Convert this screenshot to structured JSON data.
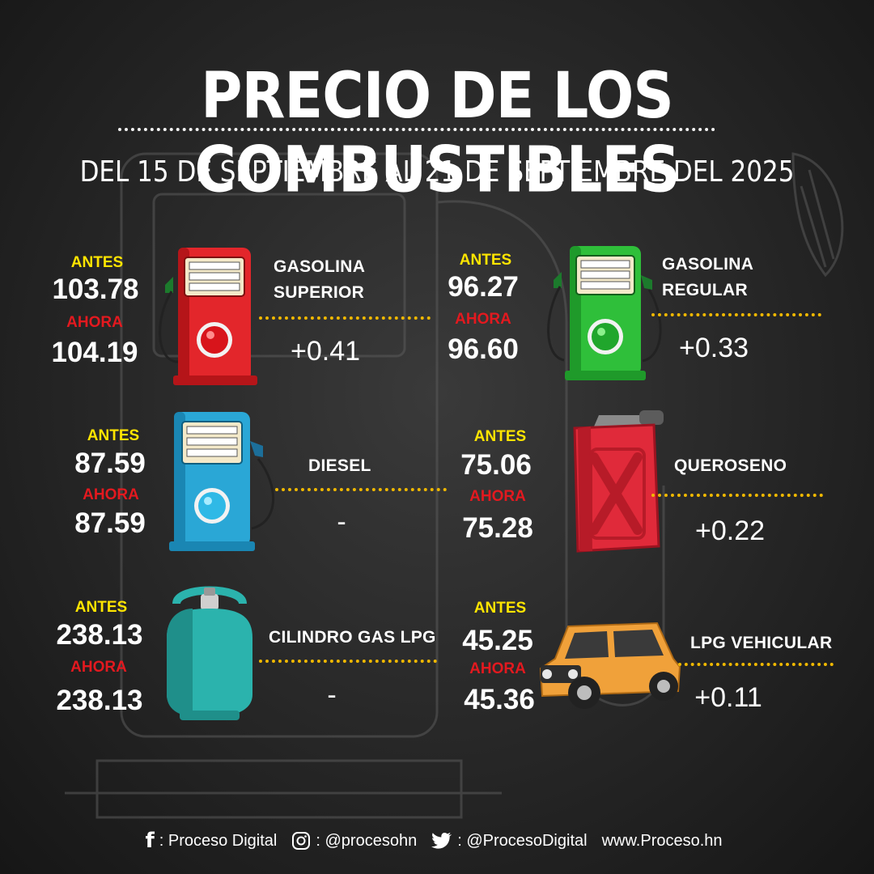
{
  "title": "PRECIO DE LOS COMBUSTIBLES",
  "subtitle": "DEL 15 DE SEPTIEMBRE AL 21 DE SEPTIEMBRE DEL 2025",
  "labels": {
    "antes": "ANTES",
    "ahora": "AHORA"
  },
  "fuels": [
    {
      "name_line1": "GASOLINA",
      "name_line2": "SUPERIOR",
      "antes": "103.78",
      "ahora": "104.19",
      "change": "+0.41",
      "icon": "red-fuel-pump-icon",
      "color": "#e3262b"
    },
    {
      "name_line1": "GASOLINA",
      "name_line2": "REGULAR",
      "antes": "96.27",
      "ahora": "96.60",
      "change": "+0.33",
      "icon": "green-fuel-pump-icon",
      "color": "#2fbf3a"
    },
    {
      "name_line1": "DIESEL",
      "antes": "87.59",
      "ahora": "87.59",
      "change": "-",
      "icon": "blue-fuel-pump-icon",
      "color": "#2aa7d6"
    },
    {
      "name_line1": "QUEROSENO",
      "antes": "75.06",
      "ahora": "75.28",
      "change": "+0.22",
      "icon": "red-jerry-can-icon",
      "color": "#e02a3a"
    },
    {
      "name_line1": "CILINDRO GAS LPG",
      "antes": "238.13",
      "ahora": "238.13",
      "change": "-",
      "icon": "gas-cylinder-icon",
      "color": "#2bb3ad"
    },
    {
      "name_line1": "LPG VEHICULAR",
      "antes": "45.25",
      "ahora": "45.36",
      "change": "+0.11",
      "icon": "orange-car-icon",
      "color": "#f0a13a"
    }
  ],
  "footer": {
    "facebook": ": Proceso Digital",
    "instagram": ": @procesohn",
    "twitter": ": @ProcesoDigital",
    "website": "www.Proceso.hn"
  },
  "colors": {
    "antes": "#ffe500",
    "ahora": "#e3191f",
    "dots": "#f0b800",
    "background": "#262626"
  }
}
